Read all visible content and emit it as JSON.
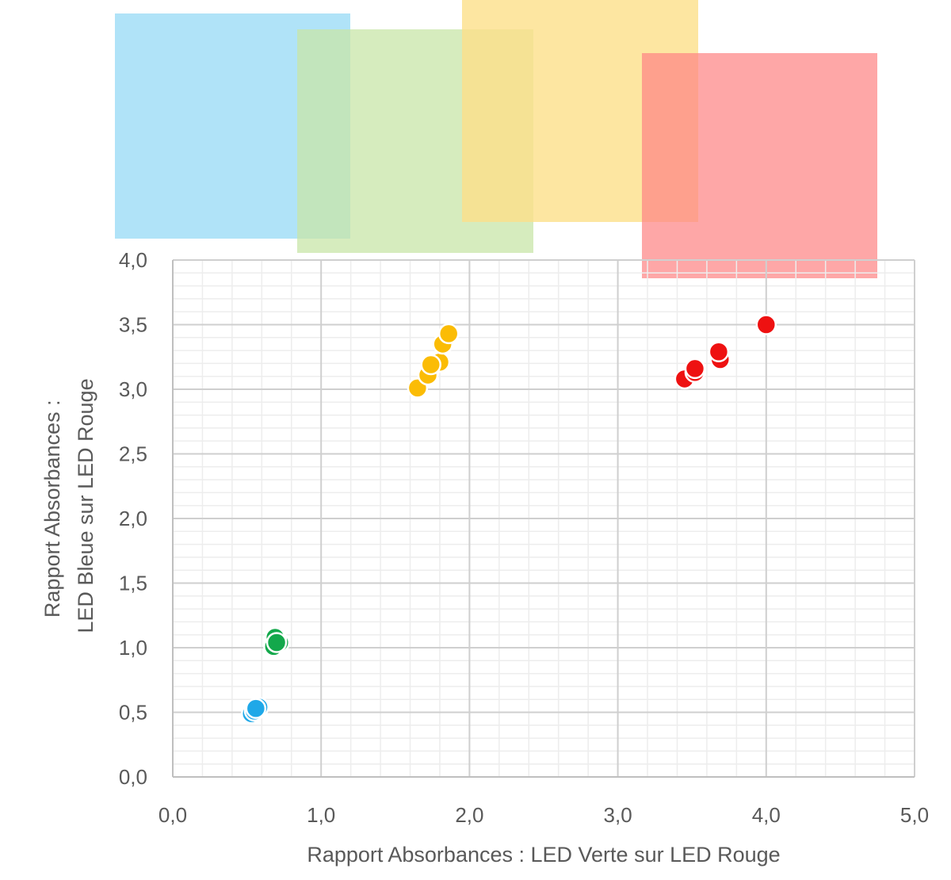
{
  "chart_data": {
    "type": "scatter",
    "xlabel": "Rapport Absorbances : LED Verte sur LED Rouge",
    "ylabel_lines": [
      "Rapport Absorbances :",
      "LED Bleue sur LED Rouge"
    ],
    "xlim": [
      0,
      5
    ],
    "ylim": [
      0,
      4
    ],
    "x_major_step": 1,
    "y_major_step": 0.5,
    "x_minor_step": 0.2,
    "y_minor_step": 0.1,
    "grid": true,
    "x_tick_labels": [
      "0,0",
      "1,0",
      "2,0",
      "3,0",
      "4,0",
      "5,0"
    ],
    "y_tick_labels": [
      "0,0",
      "0,5",
      "1,0",
      "1,5",
      "2,0",
      "2,5",
      "3,0",
      "3,5",
      "4,0"
    ],
    "swatches": [
      {
        "color": "#a7e0f7"
      },
      {
        "color": "#c8e6a8"
      },
      {
        "color": "#fde08a"
      },
      {
        "color": "#fe8585"
      }
    ],
    "series": [
      {
        "color": "#1fa8e8",
        "x": [
          0.53,
          0.55,
          0.58,
          0.56
        ],
        "y": [
          0.49,
          0.51,
          0.54,
          0.53
        ]
      },
      {
        "color": "#13a84b",
        "x": [
          0.68,
          0.72,
          0.7,
          0.69,
          0.7
        ],
        "y": [
          1.01,
          1.04,
          1.06,
          1.08,
          1.04
        ]
      },
      {
        "color": "#fbbc05",
        "x": [
          1.65,
          1.72,
          1.77,
          1.8,
          1.82,
          1.86,
          1.74
        ],
        "y": [
          3.01,
          3.11,
          3.2,
          3.21,
          3.35,
          3.43,
          3.19
        ]
      },
      {
        "color": "#ee1111",
        "x": [
          3.45,
          3.52,
          3.52,
          3.69,
          3.68,
          4.0
        ],
        "y": [
          3.08,
          3.13,
          3.16,
          3.23,
          3.29,
          3.5
        ]
      }
    ]
  }
}
